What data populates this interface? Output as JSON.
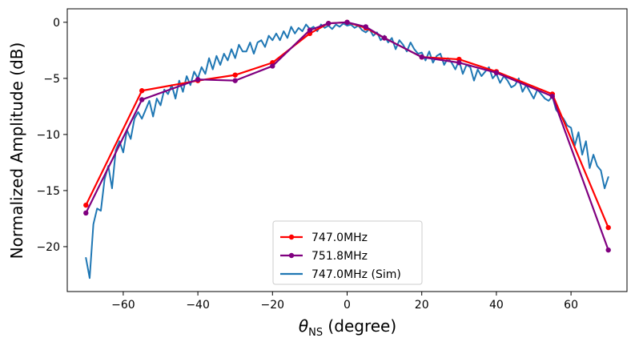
{
  "chart_data": {
    "type": "line",
    "title": "",
    "xlabel": "degree",
    "xlabel_symbol": "θ",
    "xlabel_subscript": "NS",
    "ylabel": "Normalized Amplitude (dB)",
    "xlim": [
      -75,
      75
    ],
    "ylim": [
      -24,
      1.2
    ],
    "xticks": [
      -60,
      -40,
      -20,
      0,
      20,
      40,
      60
    ],
    "yticks": [
      0,
      -5,
      -10,
      -15,
      -20
    ],
    "grid": false,
    "legend_position": "bottom-center",
    "series": [
      {
        "name": "747.0MHz",
        "color": "#ff0000",
        "marker": "dot",
        "x": [
          -70,
          -55,
          -40,
          -30,
          -20,
          -10,
          -5,
          0,
          5,
          10,
          20,
          30,
          40,
          55,
          70
        ],
        "y": [
          -16.3,
          -6.1,
          -5.2,
          -4.7,
          -3.6,
          -1.0,
          -0.1,
          0.0,
          -0.5,
          -1.4,
          -3.1,
          -3.3,
          -4.4,
          -6.4,
          -18.3
        ]
      },
      {
        "name": "751.8MHz",
        "color": "#800080",
        "marker": "dot",
        "x": [
          -70,
          -55,
          -40,
          -30,
          -20,
          -10,
          -5,
          0,
          5,
          10,
          20,
          30,
          40,
          55,
          70
        ],
        "y": [
          -17.0,
          -6.9,
          -5.1,
          -5.2,
          -3.9,
          -0.7,
          -0.1,
          0.0,
          -0.4,
          -1.4,
          -3.1,
          -3.6,
          -4.5,
          -6.6,
          -20.3
        ]
      },
      {
        "name": "747.0MHz (Sim)",
        "color": "#1f77b4",
        "marker": "none",
        "x": [
          -70,
          -69,
          -68,
          -67,
          -66,
          -65,
          -64,
          -63,
          -62,
          -61,
          -60,
          -59,
          -58,
          -57,
          -56,
          -55,
          -54,
          -53,
          -52,
          -51,
          -50,
          -49,
          -48,
          -47,
          -46,
          -45,
          -44,
          -43,
          -42,
          -41,
          -40,
          -39,
          -38,
          -37,
          -36,
          -35,
          -34,
          -33,
          -32,
          -31,
          -30,
          -29,
          -28,
          -27,
          -26,
          -25,
          -24,
          -23,
          -22,
          -21,
          -20,
          -19,
          -18,
          -17,
          -16,
          -15,
          -14,
          -13,
          -12,
          -11,
          -10,
          -9,
          -8,
          -7,
          -6,
          -5,
          -4,
          -3,
          -2,
          -1,
          0,
          1,
          2,
          3,
          4,
          5,
          6,
          7,
          8,
          9,
          10,
          11,
          12,
          13,
          14,
          15,
          16,
          17,
          18,
          19,
          20,
          21,
          22,
          23,
          24,
          25,
          26,
          27,
          28,
          29,
          30,
          31,
          32,
          33,
          34,
          35,
          36,
          37,
          38,
          39,
          40,
          41,
          42,
          43,
          44,
          45,
          46,
          47,
          48,
          49,
          50,
          51,
          52,
          53,
          54,
          55,
          56,
          57,
          58,
          59,
          60,
          61,
          62,
          63,
          64,
          65,
          66,
          67,
          68,
          69,
          70
        ],
        "y": [
          -21.0,
          -22.8,
          -18.0,
          -16.6,
          -16.8,
          -14.0,
          -12.8,
          -14.8,
          -11.4,
          -10.6,
          -11.6,
          -9.6,
          -10.4,
          -8.6,
          -8.0,
          -8.6,
          -7.8,
          -7.0,
          -8.4,
          -6.8,
          -7.4,
          -6.0,
          -6.4,
          -5.6,
          -6.8,
          -5.2,
          -6.2,
          -4.8,
          -5.6,
          -4.4,
          -5.0,
          -4.0,
          -4.6,
          -3.2,
          -4.2,
          -3.0,
          -3.8,
          -2.8,
          -3.4,
          -2.4,
          -3.2,
          -2.0,
          -2.6,
          -2.6,
          -1.8,
          -2.8,
          -1.8,
          -1.6,
          -2.2,
          -1.2,
          -1.6,
          -1.0,
          -1.6,
          -0.8,
          -1.4,
          -0.4,
          -1.0,
          -0.5,
          -0.8,
          -0.2,
          -0.6,
          -0.4,
          -0.8,
          -0.2,
          -0.5,
          -0.3,
          -0.6,
          -0.2,
          -0.4,
          -0.1,
          -0.3,
          -0.2,
          -0.5,
          -0.3,
          -0.7,
          -0.9,
          -0.6,
          -1.2,
          -0.9,
          -1.6,
          -1.2,
          -1.8,
          -1.4,
          -2.4,
          -1.6,
          -2.0,
          -2.6,
          -1.8,
          -2.4,
          -2.8,
          -2.7,
          -3.4,
          -2.6,
          -3.6,
          -3.0,
          -2.8,
          -3.8,
          -3.2,
          -3.6,
          -4.2,
          -3.4,
          -4.6,
          -3.8,
          -4.0,
          -5.2,
          -4.2,
          -4.8,
          -4.4,
          -4.0,
          -5.0,
          -4.6,
          -5.4,
          -4.8,
          -5.2,
          -5.8,
          -5.6,
          -5.0,
          -6.2,
          -5.6,
          -6.2,
          -6.8,
          -6.0,
          -6.4,
          -6.8,
          -7.0,
          -6.6,
          -7.8,
          -8.2,
          -8.6,
          -9.2,
          -9.4,
          -11.0,
          -9.8,
          -11.8,
          -10.6,
          -13.0,
          -11.8,
          -12.8,
          -13.2,
          -14.8,
          -13.8
        ]
      }
    ]
  }
}
